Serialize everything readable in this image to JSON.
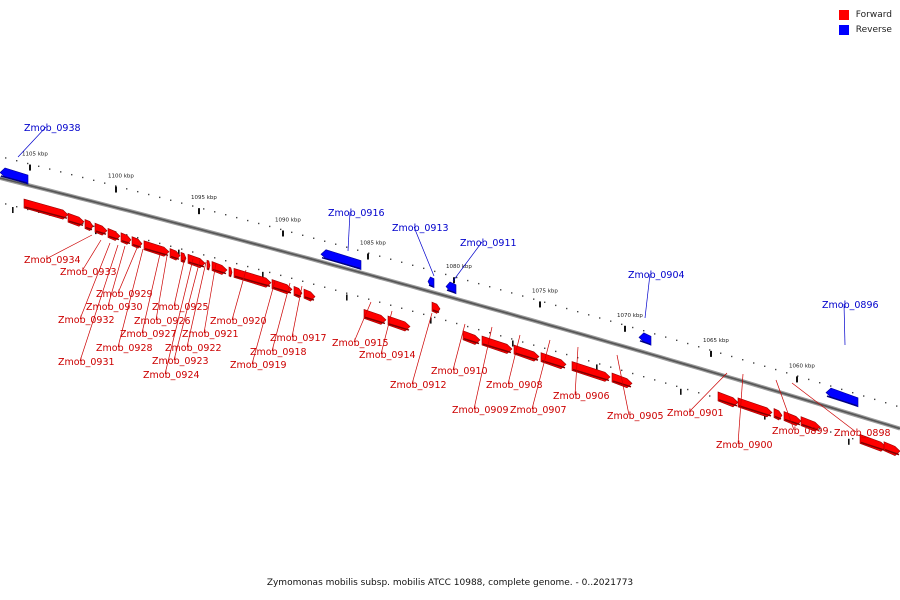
{
  "legend": {
    "items": [
      {
        "label": "Forward",
        "color": "#ff0000"
      },
      {
        "label": "Reverse",
        "color": "#0000ff"
      }
    ]
  },
  "caption": "Zymomonas mobilis subsp. mobilis ATCC 10988, complete genome. - 0..2021773",
  "colors": {
    "forward": "#ff0000",
    "reverse": "#0000ff",
    "labels_forward": "#cc0000",
    "labels_reverse": "#0000cc"
  },
  "ticks": [
    "1105 kbp",
    "1100 kbp",
    "1095 kbp",
    "1090 kbp",
    "1085 kbp",
    "1080 kbp",
    "1075 kbp",
    "1070 kbp",
    "1065 kbp",
    "1060 kbp"
  ],
  "genes": [
    "Zmob_0938",
    "Zmob_0916",
    "Zmob_0913",
    "Zmob_0911",
    "Zmob_0904",
    "Zmob_0896",
    "Zmob_0934",
    "Zmob_0933",
    "Zmob_0932",
    "Zmob_0931",
    "Zmob_0930",
    "Zmob_0929",
    "Zmob_0928",
    "Zmob_0927",
    "Zmob_0926",
    "Zmob_0925",
    "Zmob_0924",
    "Zmob_0923",
    "Zmob_0922",
    "Zmob_0921",
    "Zmob_0920",
    "Zmob_0919",
    "Zmob_0918",
    "Zmob_0917",
    "Zmob_0915",
    "Zmob_0914",
    "Zmob_0912",
    "Zmob_0910",
    "Zmob_0909",
    "Zmob_0908",
    "Zmob_0907",
    "Zmob_0906",
    "Zmob_0905",
    "Zmob_0901",
    "Zmob_0900",
    "Zmob_0899",
    "Zmob_0898"
  ]
}
